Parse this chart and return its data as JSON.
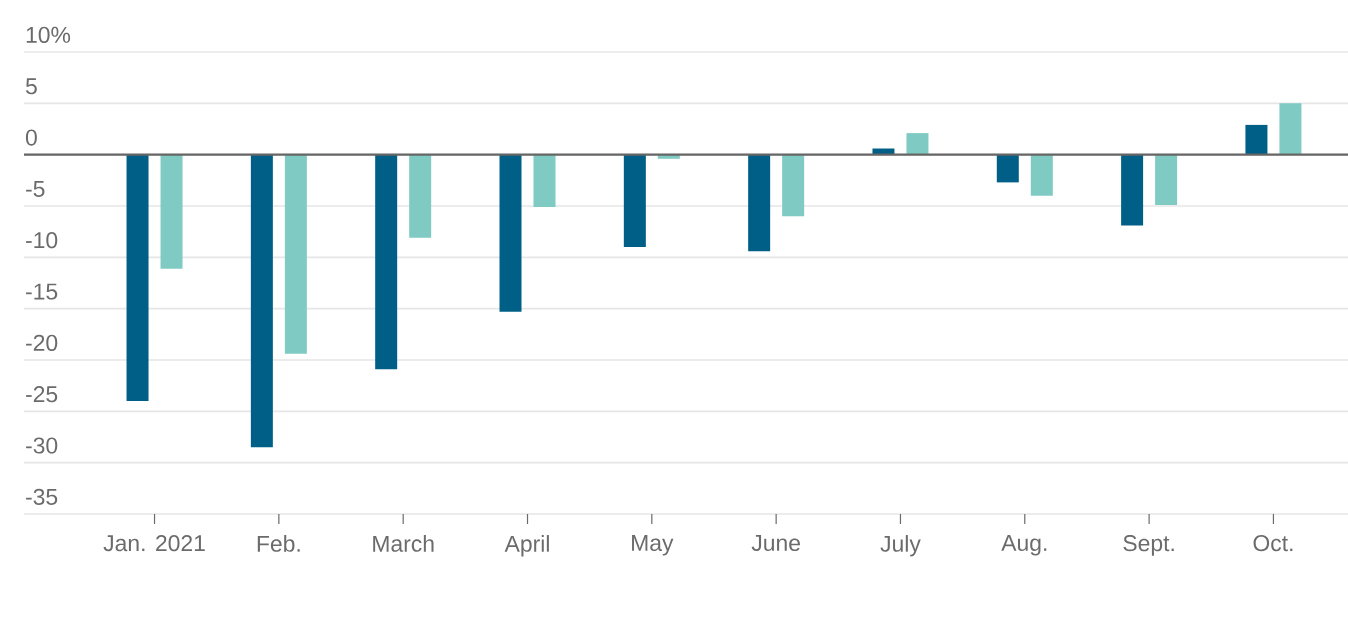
{
  "chart_data": {
    "type": "bar",
    "categories": [
      "Jan. 2021",
      "Feb.",
      "March",
      "April",
      "May",
      "June",
      "July",
      "Aug.",
      "Sept.",
      "Oct."
    ],
    "series": [
      {
        "color": "#005f86",
        "values": [
          -24.0,
          -28.5,
          -20.9,
          -15.3,
          -9.0,
          -9.4,
          0.6,
          -2.7,
          -6.9,
          2.9
        ]
      },
      {
        "color": "#7fcac3",
        "values": [
          -11.1,
          -19.4,
          -8.1,
          -5.1,
          -0.4,
          -6.0,
          2.1,
          -4.0,
          -4.9,
          5.0
        ]
      }
    ],
    "ylim": [
      -35,
      10
    ],
    "yticks": [
      -35,
      -30,
      -25,
      -20,
      -15,
      -10,
      -5,
      0,
      5,
      {
        "value": 10,
        "label": "10%"
      }
    ],
    "grid": "y"
  }
}
